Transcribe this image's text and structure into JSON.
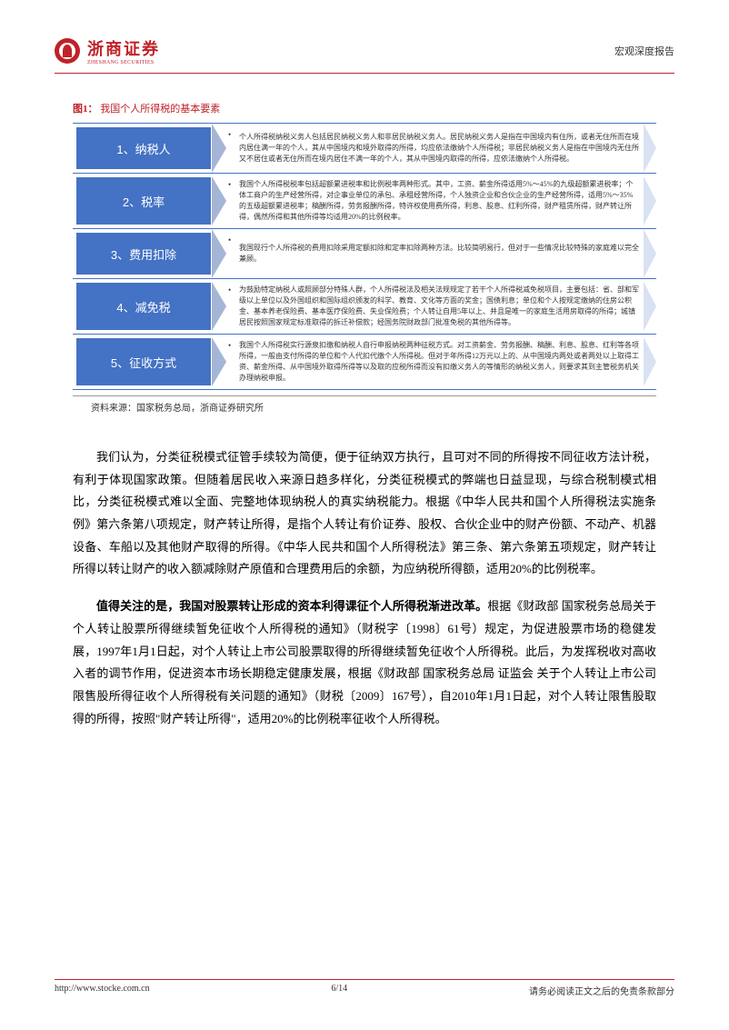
{
  "header": {
    "logo_cn": "浙商证券",
    "logo_en": "ZHESHANG SECURITIES",
    "right": "宏观深度报告"
  },
  "figure": {
    "label": "图1：",
    "title": "我国个人所得税的基本要素",
    "type": "flowchart",
    "colors": {
      "border": "#4472c4",
      "label_bg": "#4472c4",
      "label_text": "#ffffff",
      "arrow_mid": "#a5b5d6",
      "arrow_end": "#d9e2f3",
      "title_color": "#c02227",
      "desc_text": "#333333"
    },
    "rows": [
      {
        "label": "1、纳税人",
        "desc": "个人所得税纳税义务人包括居民纳税义务人和非居民纳税义务人。居民纳税义务人是指在中国境内有住所，或者无住所而在境内居住满一年的个人，其从中国境内和境外取得的所得，均应依法缴纳个人所得税；非居民纳税义务人是指在中国境内无住所又不居住或者无住所而在境内居住不满一年的个人，其从中国境内取得的所得，应依法缴纳个人所得税。"
      },
      {
        "label": "2、税率",
        "desc": "我国个人所得税税率包括超额累进税率和比例税率两种形式。其中，工资、薪金所得适用5%～45%的九级超额累进税率；个体工商户的生产经营所得，对企事业单位的承包、承租经营所得，个人独资企业和合伙企业的生产经营所得，适用5%～35%的五级超额累进税率；稿酬所得，劳务报酬所得，特许权使用费所得，利息、股息、红利所得，财产租赁所得，财产转让所得，偶然所得和其他所得等均适用20%的比例税率。"
      },
      {
        "label": "3、费用扣除",
        "desc": "我国现行个人所得税的费用扣除采用定额扣除和定率扣除两种方法。比较简明易行，但对于一些情况比较特殊的家庭难以完全兼顾。"
      },
      {
        "label": "4、减免税",
        "desc": "为鼓励特定纳税人或照顾部分特殊人群，个人所得税法及相关法规规定了若干个人所得税减免税项目，主要包括：省、部和军级以上单位以及外国组织和国际组织颁发的科学、教育、文化等方面的奖金；国债利息；单位和个人按规定缴纳的住房公积金、基本养老保险费、基本医疗保险费、失业保险费；个人转让自用5年以上、并且是唯一的家庭生活用房取得的所得；城镇居民按照国家规定标准取得的拆迁补偿款；经国务院财政部门批准免税的其他所得等。"
      },
      {
        "label": "5、征收方式",
        "desc": "我国个人所得税实行源泉扣缴和纳税人自行申报纳税两种征税方式。对工资薪金、劳务报酬、稿酬、利息、股息、红利等各项所得，一般由支付所得的单位和个人代扣代缴个人所得税。但对于年所得12万元以上的、从中国境内两处或者两处以上取得工资、薪金所得、从中国境外取得所得等以及取的应税所得而没有扣缴义务人的等情形的纳税义务人，则要求其到主管税务机关办理纳税申报。"
      }
    ],
    "source": "资料来源：国家税务总局，浙商证券研究所"
  },
  "body": {
    "p1": "我们认为，分类征税模式征管手续较为简便，便于征纳双方执行，且可对不同的所得按不同征收方法计税，有利于体现国家政策。但随着居民收入来源日趋多样化，分类征税模式的弊端也日益显现，与综合税制模式相比，分类征税模式难以全面、完整地体现纳税人的真实纳税能力。根据《中华人民共和国个人所得税法实施条例》第六条第八项规定，财产转让所得，是指个人转让有价证券、股权、合伙企业中的财产份额、不动产、机器设备、车船以及其他财产取得的所得。《中华人民共和国个人所得税法》第三条、第六条第五项规定，财产转让所得以转让财产的收入额减除财产原值和合理费用后的余额，为应纳税所得额，适用20%的比例税率。",
    "p2_bold": "值得关注的是，我国对股票转让形成的资本利得课征个人所得税渐进改革。",
    "p2_rest": "根据《财政部 国家税务总局关于个人转让股票所得继续暂免征收个人所得税的通知》（财税字〔1998〕61号）规定，为促进股票市场的稳健发展，1997年1月1日起，对个人转让上市公司股票取得的所得继续暂免征收个人所得税。此后，为发挥税收对高收入者的调节作用，促进资本市场长期稳定健康发展，根据《财政部 国家税务总局 证监会 关于个人转让上市公司限售股所得征收个人所得税有关问题的通知》（财税〔2009〕167号），自2010年1月1日起，对个人转让限售股取得的所得，按照\"财产转让所得\"，适用20%的比例税率征收个人所得税。"
  },
  "footer": {
    "url": "http://www.stocke.com.cn",
    "page": "6/14",
    "disclaimer": "请务必阅读正文之后的免责条款部分"
  }
}
